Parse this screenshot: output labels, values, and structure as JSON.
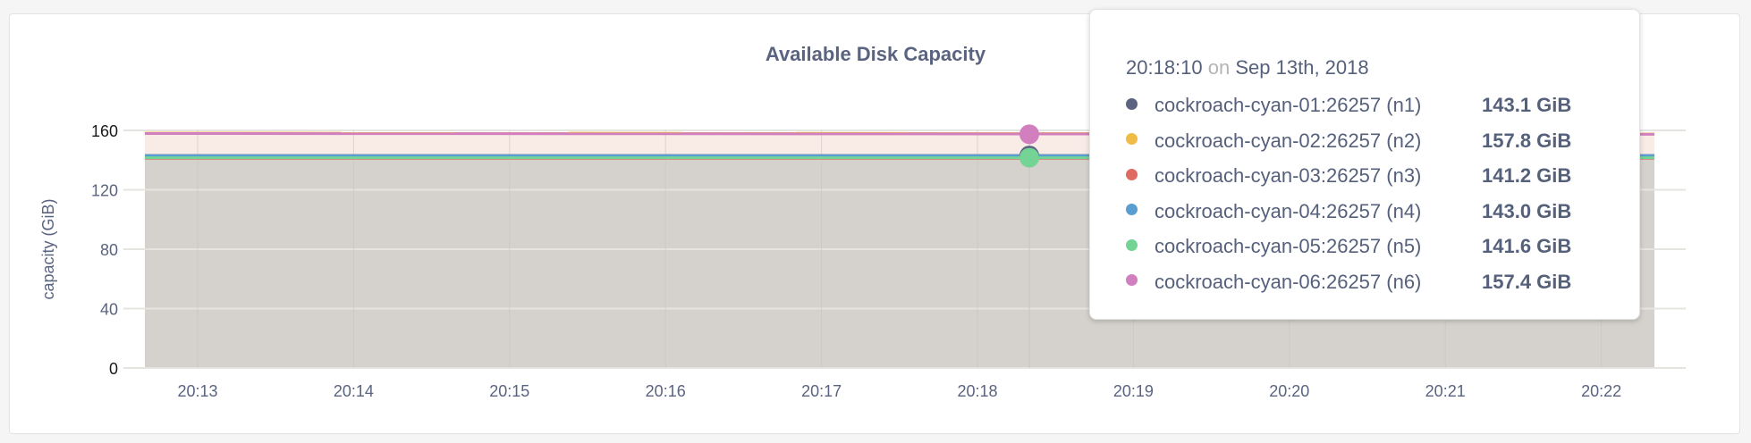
{
  "chart_data": {
    "type": "area",
    "title": "Available Disk Capacity",
    "ylabel": "capacity (GiB)",
    "xlabel": "",
    "ylim": [
      0,
      160
    ],
    "yticks": [
      "0",
      "40",
      "80",
      "120",
      "160"
    ],
    "xticks": [
      "20:13",
      "20:14",
      "20:15",
      "20:16",
      "20:17",
      "20:18",
      "20:19",
      "20:20",
      "20:21",
      "20:22"
    ],
    "grid": true,
    "series": [
      {
        "name": "cockroach-cyan-01:26257 (n1)",
        "color": "#5a6480",
        "values": [
          143.1,
          143.1
        ]
      },
      {
        "name": "cockroach-cyan-02:26257 (n2)",
        "color": "#efbc45",
        "values": [
          158.2,
          157.8
        ]
      },
      {
        "name": "cockroach-cyan-03:26257 (n3)",
        "color": "#e06b63",
        "values": [
          141.2,
          141.2
        ]
      },
      {
        "name": "cockroach-cyan-04:26257 (n4)",
        "color": "#5a9ed1",
        "values": [
          143.0,
          143.0
        ]
      },
      {
        "name": "cockroach-cyan-05:26257 (n5)",
        "color": "#73d495",
        "values": [
          141.6,
          141.6
        ]
      },
      {
        "name": "cockroach-cyan-06:26257 (n6)",
        "color": "#d27fc0",
        "values": [
          157.9,
          157.4
        ]
      }
    ],
    "tooltip": {
      "time": "20:18:10",
      "on": "on",
      "date": "Sep 13th, 2018",
      "values": [
        "143.1 GiB",
        "157.8 GiB",
        "141.2 GiB",
        "143.0 GiB",
        "141.6 GiB",
        "157.4 GiB"
      ]
    }
  }
}
